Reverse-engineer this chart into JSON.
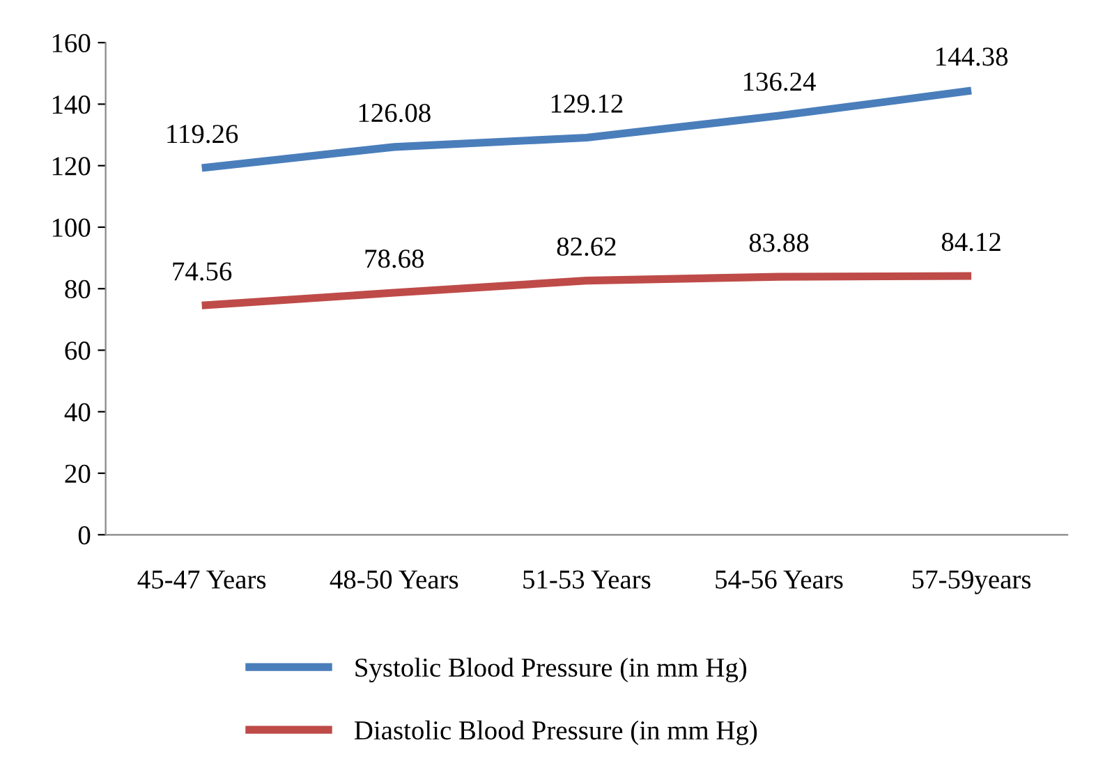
{
  "chart_data": {
    "type": "line",
    "categories": [
      "45-47 Years",
      "48-50 Years",
      "51-53 Years",
      "54-56 Years",
      "57-59years"
    ],
    "series": [
      {
        "name": "Systolic Blood Pressure (in mm Hg)",
        "color": "#4a7ebb",
        "values": [
          119.26,
          126.08,
          129.12,
          136.24,
          144.38
        ]
      },
      {
        "name": "Diastolic Blood Pressure (in mm Hg)",
        "color": "#be4b48",
        "values": [
          74.56,
          78.68,
          82.62,
          83.88,
          84.12
        ]
      }
    ],
    "ylim": [
      0,
      160
    ],
    "yticks": [
      0,
      20,
      40,
      60,
      80,
      100,
      120,
      140,
      160
    ],
    "data_labels": true,
    "legend": "bottom",
    "grid": false,
    "marker": "none",
    "line_style": "solid"
  }
}
